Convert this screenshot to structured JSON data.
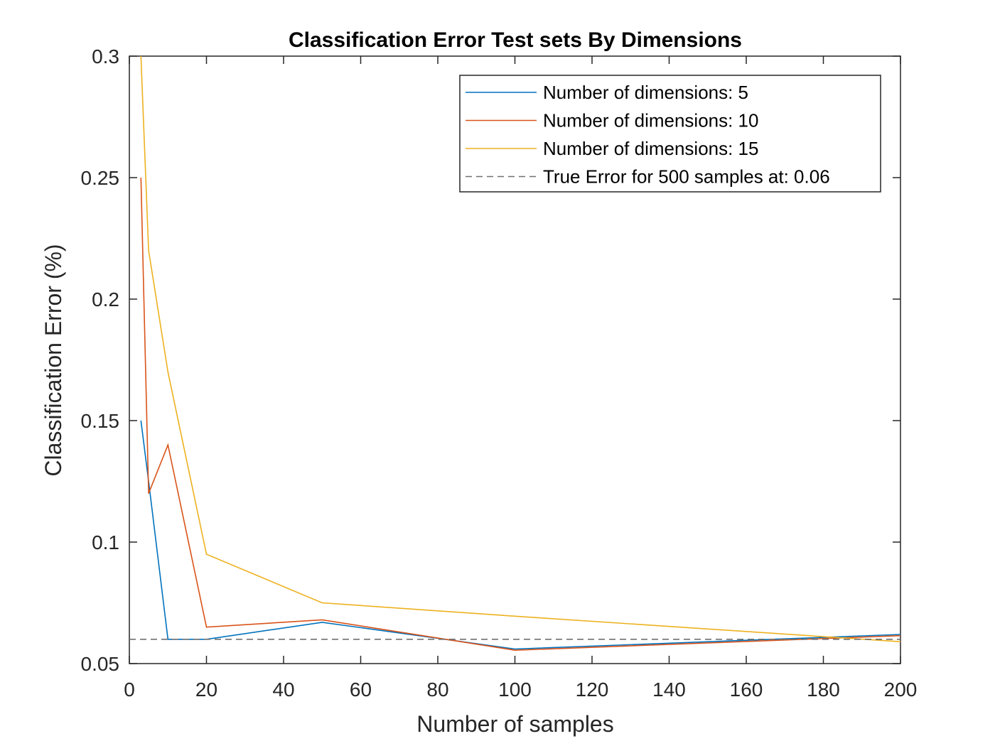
{
  "chart_data": {
    "type": "line",
    "title": "Classification Error Test sets By Dimensions",
    "xlabel": "Number of samples",
    "ylabel": "Classification Error (%)",
    "xlim": [
      0,
      200
    ],
    "ylim": [
      0.05,
      0.3
    ],
    "xticks": [
      0,
      20,
      40,
      60,
      80,
      100,
      120,
      140,
      160,
      180,
      200
    ],
    "xtick_labels": [
      "0",
      "20",
      "40",
      "60",
      "80",
      "100",
      "120",
      "140",
      "160",
      "180",
      "200"
    ],
    "yticks": [
      0.05,
      0.1,
      0.15,
      0.2,
      0.25,
      0.3
    ],
    "ytick_labels": [
      "0.05",
      "0.1",
      "0.15",
      "0.2",
      "0.25",
      "0.3"
    ],
    "grid": false,
    "legend_position": "top-right",
    "series": [
      {
        "name": "Number of dimensions: 5",
        "color": "#0072BD",
        "style": "solid",
        "x": [
          3,
          5,
          10,
          20,
          50,
          100,
          200
        ],
        "y": [
          0.15,
          0.125,
          0.06,
          0.06,
          0.067,
          0.056,
          0.062
        ]
      },
      {
        "name": "Number of dimensions: 10",
        "color": "#D95319",
        "style": "solid",
        "x": [
          3,
          5,
          10,
          20,
          50,
          100,
          200
        ],
        "y": [
          0.25,
          0.12,
          0.14,
          0.065,
          0.068,
          0.0555,
          0.0615
        ]
      },
      {
        "name": "Number of dimensions: 15",
        "color": "#EDB120",
        "style": "solid",
        "x": [
          3,
          5,
          10,
          20,
          50,
          100,
          200
        ],
        "y": [
          0.3,
          0.22,
          0.17,
          0.095,
          0.075,
          0.0695,
          0.059
        ]
      },
      {
        "name": "True Error for 500 samples at: 0.06",
        "color": "#707070",
        "style": "dashed",
        "x": [
          0,
          200
        ],
        "y": [
          0.06,
          0.06
        ]
      }
    ]
  }
}
